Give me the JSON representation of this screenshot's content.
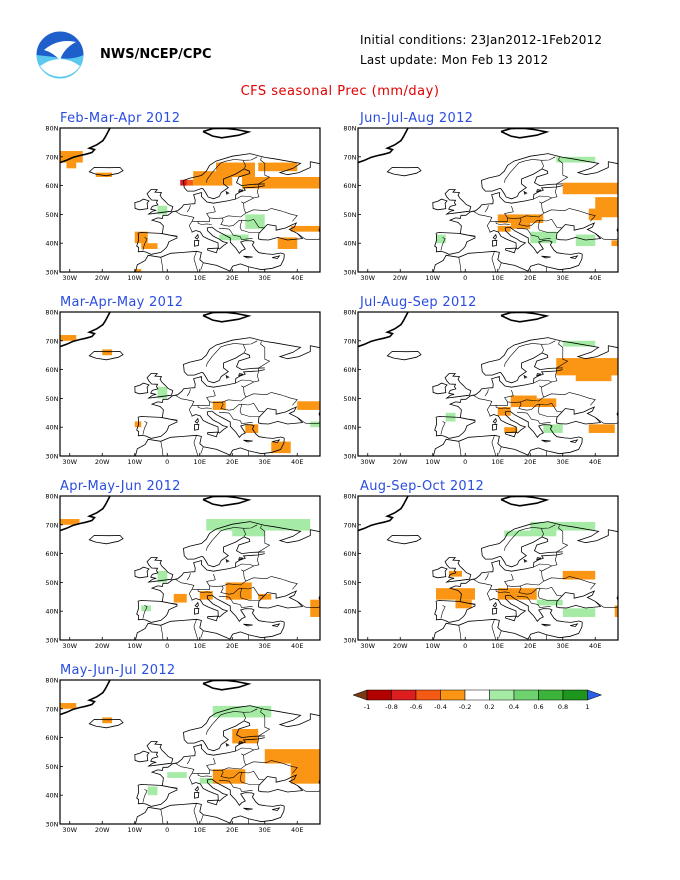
{
  "header": {
    "agency": "NWS/NCEP/CPC",
    "initial_conditions": "Initial conditions: 23Jan2012-1Feb2012",
    "last_update": "Last update: Mon Feb 13 2012"
  },
  "title": "CFS seasonal Prec (mm/day)",
  "axes": {
    "lon_labels": [
      "30W",
      "20W",
      "10W",
      "0",
      "10E",
      "20E",
      "30E",
      "40E"
    ],
    "lat_labels": [
      "30N",
      "40N",
      "50N",
      "60N",
      "70N",
      "80N"
    ]
  },
  "panels": [
    {
      "label": "Feb-Mar-Apr 2012",
      "position": "left-1"
    },
    {
      "label": "Jun-Jul-Aug 2012",
      "position": "right-1"
    },
    {
      "label": "Mar-Apr-May 2012",
      "position": "left-2"
    },
    {
      "label": "Jul-Aug-Sep 2012",
      "position": "right-2"
    },
    {
      "label": "Apr-May-Jun 2012",
      "position": "left-3"
    },
    {
      "label": "Aug-Sep-Oct 2012",
      "position": "right-3"
    },
    {
      "label": "May-Jun-Jul 2012",
      "position": "left-4"
    }
  ],
  "colorbar": {
    "labels": [
      "-1",
      "-0.8",
      "-0.6",
      "-0.4",
      "-0.2",
      "0.2",
      "0.4",
      "0.6",
      "0.8",
      "1"
    ],
    "colors": [
      "#7a3b12",
      "#b30000",
      "#dc1e1e",
      "#f55a14",
      "#fa9614",
      "#ffffff",
      "#a5eba5",
      "#6ed26e",
      "#3cb43c",
      "#1e961e",
      "#2860e8"
    ]
  },
  "colors": {
    "title": "#e00000",
    "panel_title": "#2b4de0",
    "dry_anomaly": "#fa9614",
    "wet_anomaly": "#a5eba5"
  }
}
